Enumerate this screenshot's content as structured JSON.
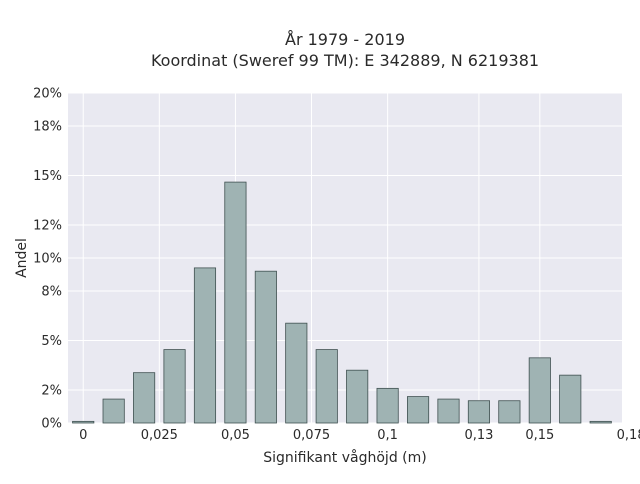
{
  "chart_data": {
    "type": "bar",
    "title_line1": "År 1979 - 2019",
    "title_line2": "Koordinat (Sweref 99 TM): E 342889, N 6219381",
    "xlabel": "Signifikant våghöjd (m)",
    "ylabel": "Andel",
    "x_ticks": [
      "0",
      "0,025",
      "0,05",
      "0,075",
      "0,1",
      "0,13",
      "0,15",
      "0,18"
    ],
    "y_ticks": [
      "0%",
      "2%",
      "5%",
      "8%",
      "10%",
      "12%",
      "15%",
      "18%",
      "20%"
    ],
    "xlim": [
      -0.005,
      0.177
    ],
    "ylim": [
      0,
      20
    ],
    "grid": true,
    "bin_centers": [
      0.0,
      0.01,
      0.02,
      0.03,
      0.04,
      0.05,
      0.06,
      0.07,
      0.08,
      0.09,
      0.1,
      0.11,
      0.12,
      0.13,
      0.14,
      0.15,
      0.16,
      0.17
    ],
    "values": [
      0.1,
      1.45,
      3.05,
      4.45,
      9.4,
      14.6,
      9.2,
      6.05,
      4.45,
      3.2,
      2.1,
      1.6,
      1.45,
      1.35,
      1.35,
      3.95,
      2.9,
      0.1
    ],
    "colors": {
      "bar_fill": "#9fb3b3",
      "bar_edge": "#3f5050",
      "plot_bg": "#e9e9f1",
      "grid": "#ffffff"
    }
  }
}
